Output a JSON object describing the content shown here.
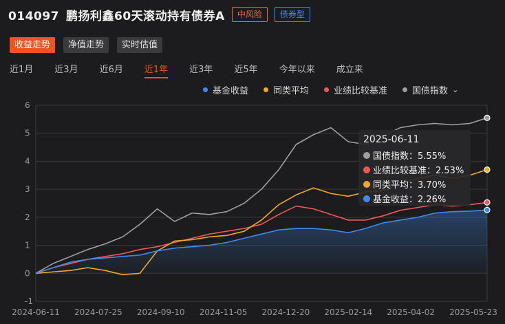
{
  "header": {
    "fund_code": "014097",
    "fund_name": "鹏扬利鑫60天滚动持有债券A",
    "risk_badge": "中风险",
    "type_badge": "债券型"
  },
  "view_tabs": [
    {
      "label": "收益走势",
      "active": true
    },
    {
      "label": "净值走势",
      "active": false
    },
    {
      "label": "实时估值",
      "active": false
    }
  ],
  "periods": [
    {
      "label": "近1月",
      "active": false
    },
    {
      "label": "近3月",
      "active": false
    },
    {
      "label": "近6月",
      "active": false
    },
    {
      "label": "近1年",
      "active": true
    },
    {
      "label": "近3年",
      "active": false
    },
    {
      "label": "近5年",
      "active": false
    },
    {
      "label": "今年以来",
      "active": false
    },
    {
      "label": "成立来",
      "active": false
    }
  ],
  "legend": [
    {
      "label": "基金收益",
      "color": "#3d8bef"
    },
    {
      "label": "同类平均",
      "color": "#f5a623"
    },
    {
      "label": "业绩比较基准",
      "color": "#f25757"
    },
    {
      "label": "国债指数",
      "color": "#9e9e9e",
      "has_dropdown": true
    }
  ],
  "tooltip": {
    "date": "2025-06-11",
    "rows": [
      {
        "label": "国债指数：5.55%",
        "color": "#9e9e9e"
      },
      {
        "label": "业绩比较基准：2.53%",
        "color": "#f25757"
      },
      {
        "label": "同类平均：3.70%",
        "color": "#f5a623"
      },
      {
        "label": "基金收益：2.26%",
        "color": "#3d8bef"
      }
    ]
  },
  "chart_data": {
    "type": "line",
    "ylabel": "",
    "ylim": [
      -1,
      6
    ],
    "yticks": [
      -1,
      0,
      1,
      2,
      3,
      4,
      5,
      6
    ],
    "xticks": [
      "2024-06-11",
      "2024-07-25",
      "2024-09-10",
      "2024-11-05",
      "2024-12-20",
      "2025-02-14",
      "2025-04-02",
      "2025-05-23"
    ],
    "x": [
      "2024-06-11",
      "2024-06-25",
      "2024-07-09",
      "2024-07-25",
      "2024-08-08",
      "2024-08-22",
      "2024-09-10",
      "2024-09-24",
      "2024-10-10",
      "2024-10-22",
      "2024-11-05",
      "2024-11-19",
      "2024-12-04",
      "2024-12-20",
      "2025-01-06",
      "2025-01-20",
      "2025-02-05",
      "2025-02-14",
      "2025-02-28",
      "2025-03-14",
      "2025-04-02",
      "2025-04-16",
      "2025-04-30",
      "2025-05-14",
      "2025-05-23",
      "2025-06-04",
      "2025-06-11"
    ],
    "series": [
      {
        "name": "国债指数",
        "color": "#9e9e9e",
        "values": [
          0.0,
          0.35,
          0.6,
          0.85,
          1.05,
          1.3,
          1.75,
          2.3,
          1.85,
          2.15,
          2.1,
          2.2,
          2.5,
          3.0,
          3.7,
          4.6,
          4.95,
          5.2,
          4.7,
          4.6,
          4.9,
          5.2,
          5.3,
          5.35,
          5.3,
          5.35,
          5.55
        ]
      },
      {
        "name": "业绩比较基准",
        "color": "#f25757",
        "values": [
          0.0,
          0.2,
          0.35,
          0.5,
          0.6,
          0.7,
          0.85,
          0.95,
          1.1,
          1.25,
          1.4,
          1.5,
          1.6,
          1.75,
          2.1,
          2.4,
          2.3,
          2.1,
          1.9,
          1.9,
          2.05,
          2.25,
          2.35,
          2.45,
          2.4,
          2.45,
          2.53
        ]
      },
      {
        "name": "同类平均",
        "color": "#f5a623",
        "values": [
          0.0,
          0.05,
          0.1,
          0.2,
          0.1,
          -0.05,
          0.0,
          0.8,
          1.15,
          1.2,
          1.3,
          1.35,
          1.5,
          1.9,
          2.45,
          2.8,
          3.05,
          2.85,
          2.75,
          2.9,
          2.95,
          3.2,
          3.4,
          3.5,
          3.4,
          3.5,
          3.7
        ]
      },
      {
        "name": "基金收益",
        "color": "#3d8bef",
        "values": [
          0.0,
          0.2,
          0.4,
          0.5,
          0.55,
          0.6,
          0.65,
          0.8,
          0.9,
          0.95,
          1.0,
          1.1,
          1.25,
          1.4,
          1.55,
          1.6,
          1.6,
          1.55,
          1.45,
          1.6,
          1.8,
          1.9,
          2.0,
          2.15,
          2.2,
          2.22,
          2.26
        ]
      }
    ]
  }
}
